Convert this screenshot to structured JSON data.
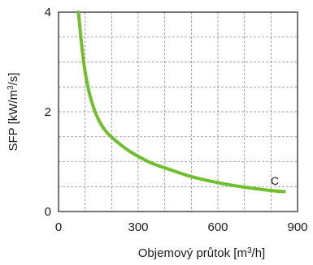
{
  "chart_data": {
    "type": "line",
    "xlabel": "Objemový průtok [m³/h]",
    "ylabel": "SFP [kW/m³/s]",
    "xlim": [
      0,
      900
    ],
    "ylim": [
      0,
      4
    ],
    "x_ticks": [
      "0",
      "300",
      "600",
      "900"
    ],
    "y_ticks": [
      "0",
      "2",
      "4"
    ],
    "x_grid_step": 100,
    "y_grid_step": 0.5,
    "grid": true,
    "series": [
      {
        "name": "C",
        "color": "#6fbf2a",
        "x": [
          75,
          90,
          105,
          125,
          150,
          180,
          220,
          270,
          320,
          360,
          420,
          500,
          580,
          660,
          740,
          820,
          850
        ],
        "y": [
          4.0,
          3.2,
          2.65,
          2.2,
          1.85,
          1.6,
          1.4,
          1.2,
          1.05,
          0.95,
          0.84,
          0.7,
          0.6,
          0.52,
          0.46,
          0.41,
          0.4
        ]
      }
    ]
  }
}
